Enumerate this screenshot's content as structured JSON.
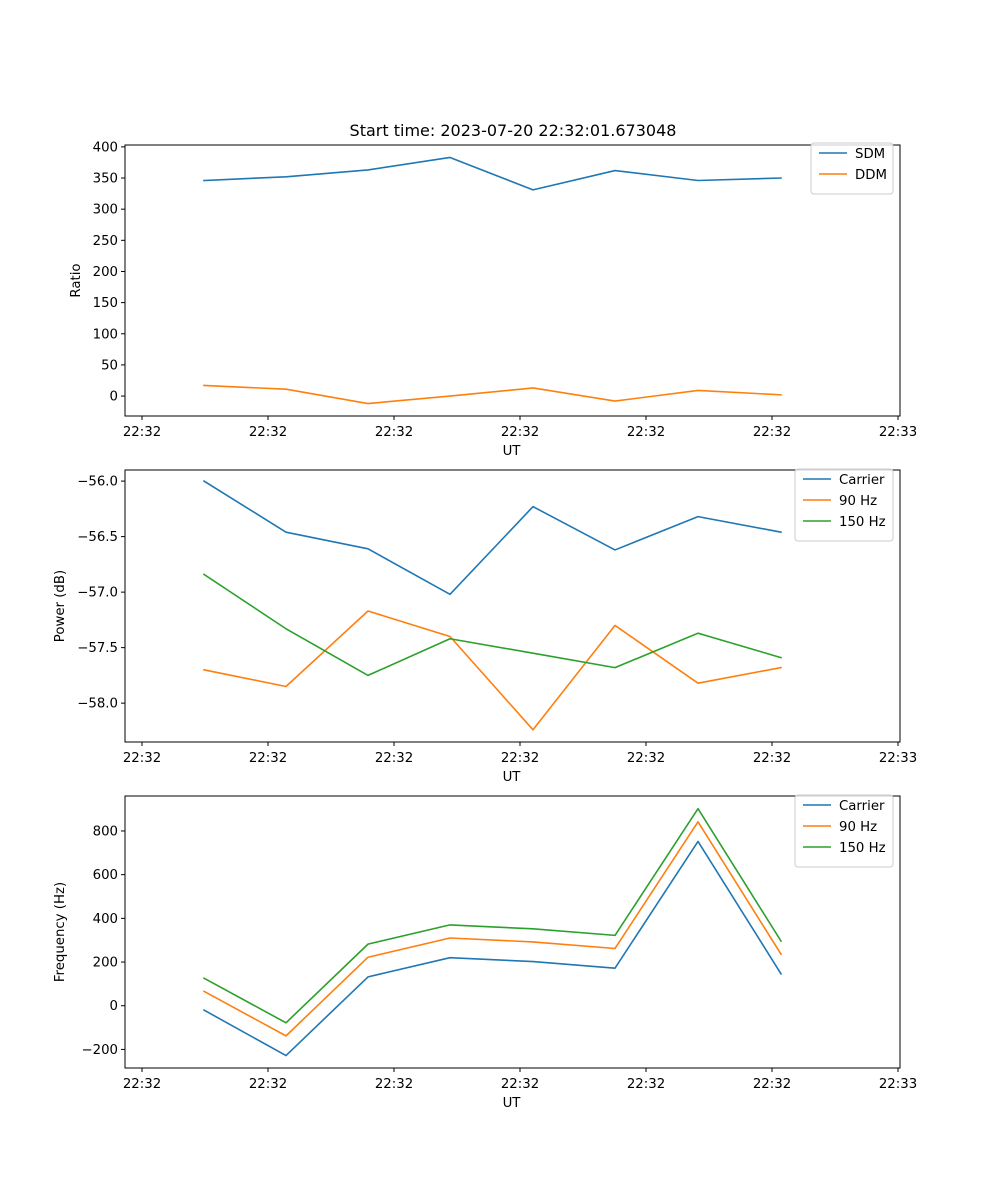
{
  "title": "Start time: 2023-07-20 22:32:01.673048",
  "colors": {
    "blue": "#1f77b4",
    "orange": "#ff7f0e",
    "green": "#2ca02c"
  },
  "chart_data": [
    {
      "type": "line",
      "title": "Start time: 2023-07-20 22:32:01.673048",
      "xlabel": "UT",
      "ylabel": "Ratio",
      "x_tick_labels": [
        "22:32",
        "22:32",
        "22:32",
        "22:32",
        "22:32",
        "22:32",
        "22:32",
        "22:33"
      ],
      "ylim": [
        -32,
        403
      ],
      "yticks": [
        0,
        50,
        100,
        150,
        200,
        250,
        300,
        350,
        400
      ],
      "ytick_labels": [
        "0",
        "50",
        "100",
        "150",
        "200",
        "250",
        "300",
        "350",
        "400"
      ],
      "legend": "top-right",
      "series": [
        {
          "name": "SDM",
          "color": "#1f77b4",
          "values": [
            346,
            352,
            363,
            383,
            331,
            362,
            346,
            350
          ]
        },
        {
          "name": "DDM",
          "color": "#ff7f0e",
          "values": [
            17,
            11,
            -12,
            0,
            13,
            -8,
            9,
            2
          ]
        }
      ]
    },
    {
      "type": "line",
      "xlabel": "UT",
      "ylabel": "Power (dB)",
      "x_tick_labels": [
        "22:32",
        "22:32",
        "22:32",
        "22:32",
        "22:32",
        "22:32",
        "22:32",
        "22:33"
      ],
      "ylim": [
        -58.35,
        -55.9
      ],
      "yticks": [
        -58.0,
        -57.5,
        -57.0,
        -56.5,
        -56.0
      ],
      "ytick_labels": [
        "−58.0",
        "−57.5",
        "−57.0",
        "−56.5",
        "−56.0"
      ],
      "legend": "top-right",
      "series": [
        {
          "name": "Carrier",
          "color": "#1f77b4",
          "values": [
            -56.0,
            -56.46,
            -56.61,
            -57.02,
            -56.23,
            -56.62,
            -56.32,
            -56.46
          ]
        },
        {
          "name": "90 Hz",
          "color": "#ff7f0e",
          "values": [
            -57.7,
            -57.85,
            -57.17,
            -57.4,
            -58.24,
            -57.3,
            -57.82,
            -57.68
          ]
        },
        {
          "name": "150 Hz",
          "color": "#2ca02c",
          "values": [
            -56.84,
            -57.33,
            -57.75,
            -57.42,
            -57.55,
            -57.68,
            -57.37,
            -57.59
          ]
        }
      ]
    },
    {
      "type": "line",
      "xlabel": "UT",
      "ylabel": "Frequency (Hz)",
      "x_tick_labels": [
        "22:32",
        "22:32",
        "22:32",
        "22:32",
        "22:32",
        "22:32",
        "22:32",
        "22:33"
      ],
      "ylim": [
        -285,
        960
      ],
      "yticks": [
        -200,
        0,
        200,
        400,
        600,
        800
      ],
      "ytick_labels": [
        "−200",
        "0",
        "200",
        "400",
        "600",
        "800"
      ],
      "legend": "top-right",
      "series": [
        {
          "name": "Carrier",
          "color": "#1f77b4",
          "values": [
            -20,
            -228,
            132,
            220,
            202,
            172,
            752,
            146
          ]
        },
        {
          "name": "90 Hz",
          "color": "#ff7f0e",
          "values": [
            66,
            -138,
            222,
            310,
            292,
            262,
            842,
            236
          ]
        },
        {
          "name": "150 Hz",
          "color": "#2ca02c",
          "values": [
            126,
            -78,
            282,
            370,
            352,
            322,
            902,
            296
          ]
        }
      ]
    }
  ]
}
